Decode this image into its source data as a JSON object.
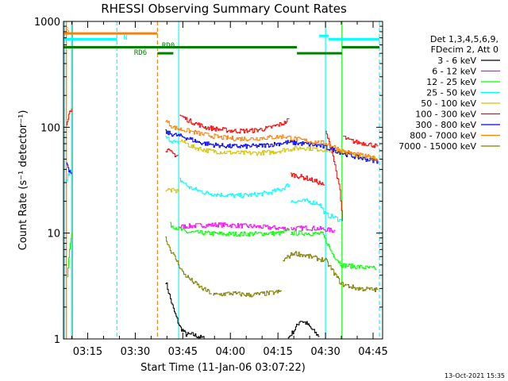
{
  "chart_data": {
    "type": "line",
    "title": "RHESSI Observing Summary Count Rates",
    "xlabel": "Start Time (11-Jan-06 03:07:22)",
    "ylabel": "Count Rate (s⁻¹ detector⁻¹)",
    "y_scale": "log",
    "ylim": [
      1,
      1000
    ],
    "xlim_minutes": [
      7.37,
      108.0
    ],
    "x_ticks": [
      {
        "m": 15,
        "label": "03:15"
      },
      {
        "m": 30,
        "label": "03:30"
      },
      {
        "m": 45,
        "label": "03:45"
      },
      {
        "m": 60,
        "label": "04:00"
      },
      {
        "m": 75,
        "label": "04:15"
      },
      {
        "m": 90,
        "label": "04:30"
      },
      {
        "m": 105,
        "label": "04:45"
      }
    ],
    "y_ticks": [
      {
        "v": 1,
        "label": "1"
      },
      {
        "v": 10,
        "label": "10"
      },
      {
        "v": 100,
        "label": "100"
      },
      {
        "v": 1000,
        "label": "1000"
      }
    ],
    "legend": {
      "placement": "right",
      "header": [
        "Det 1,3,4,5,6,9,",
        "FDecim 2, Att 0"
      ]
    },
    "series": [
      {
        "name": "3 - 6 keV",
        "color": "#000000",
        "segments": [
          {
            "x": [
              39.5,
              42,
              44,
              46,
              48,
              50,
              52
            ],
            "y": [
              3.5,
              1.9,
              1.3,
              1.1,
              1.1,
              1.05,
              1.0
            ]
          },
          {
            "x": [
              78,
              80,
              82,
              84,
              86,
              88
            ],
            "y": [
              1.0,
              1.2,
              1.5,
              1.4,
              1.2,
              1.05
            ]
          }
        ]
      },
      {
        "name": "6 - 12 keV",
        "color": "#ff00ff",
        "segments": [
          {
            "x": [
              44,
              50,
              56,
              62,
              68,
              74,
              78.5
            ],
            "y": [
              11.5,
              11.8,
              12,
              11.8,
              11.5,
              11.2,
              11
            ]
          },
          {
            "x": [
              79,
              84,
              88,
              90,
              93
            ],
            "y": [
              11,
              11.2,
              11,
              10.8,
              10.5
            ]
          }
        ]
      },
      {
        "name": "12 - 25 keV",
        "color": "#00ff00",
        "segments": [
          {
            "x": [
              8.5,
              9.0,
              9.5,
              9.9
            ],
            "y": [
              4,
              6,
              8,
              10
            ]
          },
          {
            "x": [
              41,
              46,
              52,
              58,
              64,
              70,
              76,
              78.5
            ],
            "y": [
              12,
              10.2,
              10,
              9.8,
              9.8,
              9.9,
              10,
              10.5
            ]
          },
          {
            "x": [
              79,
              84,
              89,
              92,
              95,
              100,
              106
            ],
            "y": [
              10,
              10,
              9.8,
              6.5,
              5.0,
              4.8,
              4.6
            ]
          }
        ]
      },
      {
        "name": "25 - 50 keV",
        "color": "#00ffff",
        "segments": [
          {
            "x": [
              8.3,
              8.8,
              9.3,
              9.9
            ],
            "y": [
              30,
              35,
              38,
              40
            ]
          },
          {
            "x": [
              39.5,
              41,
              42.5,
              43.5
            ],
            "y": [
              80,
              76,
              72,
              70
            ]
          },
          {
            "x": [
              44,
              47,
              52,
              57,
              62,
              67,
              72,
              76,
              78.5
            ],
            "y": [
              32,
              27,
              24,
              23,
              22.5,
              23,
              24,
              26,
              29
            ]
          },
          {
            "x": [
              79,
              84,
              88,
              90,
              93,
              95
            ],
            "y": [
              20,
              20,
              19,
              15,
              14,
              13
            ]
          }
        ]
      },
      {
        "name": "50 - 100 keV",
        "color": "#d4c400",
        "segments": [
          {
            "x": [
              39.5,
              41,
              42.5,
              43.5
            ],
            "y": [
              26,
              25.5,
              25,
              24.8
            ]
          },
          {
            "x": [
              44,
              48,
              53,
              58,
              63,
              68,
              73,
              78,
              83,
              88,
              93,
              98,
              103,
              106.5
            ],
            "y": [
              76,
              65,
              60,
              58,
              57,
              57,
              58,
              62,
              64,
              62,
              60,
              56,
              52,
              50
            ]
          }
        ]
      },
      {
        "name": "100 - 300 keV",
        "color": "#ff0000",
        "segments": [
          {
            "x": [
              8.3,
              8.8,
              9.3,
              9.9
            ],
            "y": [
              110,
              125,
              140,
              150
            ]
          },
          {
            "x": [
              39.5,
              41,
              42.5,
              43.5
            ],
            "y": [
              62,
              58,
              55,
              54
            ]
          },
          {
            "x": [
              44,
              47,
              52,
              57,
              62,
              67,
              72,
              77,
              78.5
            ],
            "y": [
              130,
              115,
              100,
              95,
              92,
              93,
              98,
              110,
              120
            ]
          },
          {
            "x": [
              79,
              84,
              88,
              89.5
            ],
            "y": [
              36,
              33,
              30,
              28
            ]
          },
          {
            "x": [
              90,
              92,
              94.5,
              95.3
            ],
            "y": [
              90,
              60,
              25,
              13
            ]
          },
          {
            "x": [
              95.5,
              97,
              100,
              103,
              106.5
            ],
            "y": [
              82,
              76,
              72,
              70,
              66
            ]
          }
        ]
      },
      {
        "name": "300 - 800 keV",
        "color": "#0000ff",
        "segments": [
          {
            "x": [
              8.3,
              8.8,
              9.3,
              9.9
            ],
            "y": [
              44,
              40,
              38,
              36
            ]
          },
          {
            "x": [
              39.5,
              41,
              43,
              46,
              50,
              55,
              60,
              65,
              70,
              75,
              78,
              83,
              88,
              92,
              96,
              100,
              104,
              106.5
            ],
            "y": [
              90,
              87,
              84,
              80,
              72,
              68,
              66,
              66,
              67,
              70,
              72,
              70,
              67,
              62,
              56,
              52,
              49,
              48
            ]
          }
        ]
      },
      {
        "name": "800 - 7000 keV",
        "color": "#ff8000",
        "segments": [
          {
            "x": [
              39.5,
              42,
              44,
              47,
              52,
              57,
              62,
              67,
              72,
              77,
              82,
              87,
              91,
              95,
              100,
              104,
              106.5
            ],
            "y": [
              115,
              100,
              96,
              92,
              85,
              80,
              78,
              78,
              80,
              82,
              76,
              72,
              70,
              60,
              55,
              52,
              50
            ]
          }
        ]
      },
      {
        "name": "7000 - 15000 keV",
        "color": "#808000",
        "segments": [
          {
            "x": [
              39.5,
              41,
              43,
              45,
              48,
              51,
              54
            ],
            "y": [
              9,
              7,
              5.5,
              4.2,
              3.5,
              3.0,
              2.7
            ]
          },
          {
            "x": [
              54.5,
              60,
              66,
              72,
              76
            ],
            "y": [
              2.6,
              2.7,
              2.6,
              2.7,
              2.8
            ]
          },
          {
            "x": [
              76.5,
              80,
              85,
              90,
              95,
              100,
              106.5
            ],
            "y": [
              5.5,
              6.5,
              6.0,
              5.5,
              3.3,
              3.0,
              2.9
            ]
          }
        ]
      }
    ],
    "vertical_lines": [
      {
        "x": 8.3,
        "color": "#ff8000",
        "style": "solid"
      },
      {
        "x": 10.2,
        "color": "#ff8000",
        "style": "solid"
      },
      {
        "x": 7.7,
        "color": "#00ffff",
        "style": "solid"
      },
      {
        "x": 9.9,
        "color": "#00ffff",
        "style": "solid"
      },
      {
        "x": 24.2,
        "color": "#00ffff",
        "style": "dashed"
      },
      {
        "x": 37.0,
        "color": "#ff8000",
        "style": "dashed"
      },
      {
        "x": 43.7,
        "color": "#00ffff",
        "style": "solid"
      },
      {
        "x": 90.0,
        "color": "#00ffff",
        "style": "solid"
      },
      {
        "x": 95.2,
        "color": "#00ff00",
        "style": "solid"
      },
      {
        "x": 107.0,
        "color": "#00ffff",
        "style": "dashed"
      }
    ],
    "flag_bars": [
      {
        "label": "S",
        "color": "#ff8000",
        "y": 770,
        "segments": [
          [
            7.4,
            37.0
          ]
        ]
      },
      {
        "label": "N",
        "color": "#00ffff",
        "y": 680,
        "segments": [
          [
            7.4,
            24.2
          ],
          [
            91.0,
            107.0
          ]
        ]
      },
      {
        "label": "",
        "color": "#00ffff",
        "y": 730,
        "segments": [
          [
            88.0,
            91.0
          ]
        ]
      },
      {
        "label": "RD0",
        "color": "#008000",
        "y": 570,
        "segments": [
          [
            7.4,
            81.0
          ],
          [
            95.2,
            107.0
          ]
        ]
      },
      {
        "label": "RD6",
        "color": "#008000",
        "y": 500,
        "segments": [
          [
            37.0,
            42.0
          ],
          [
            81.0,
            95.2
          ]
        ]
      }
    ],
    "footer_date": "13-Oct-2021 15:35"
  }
}
